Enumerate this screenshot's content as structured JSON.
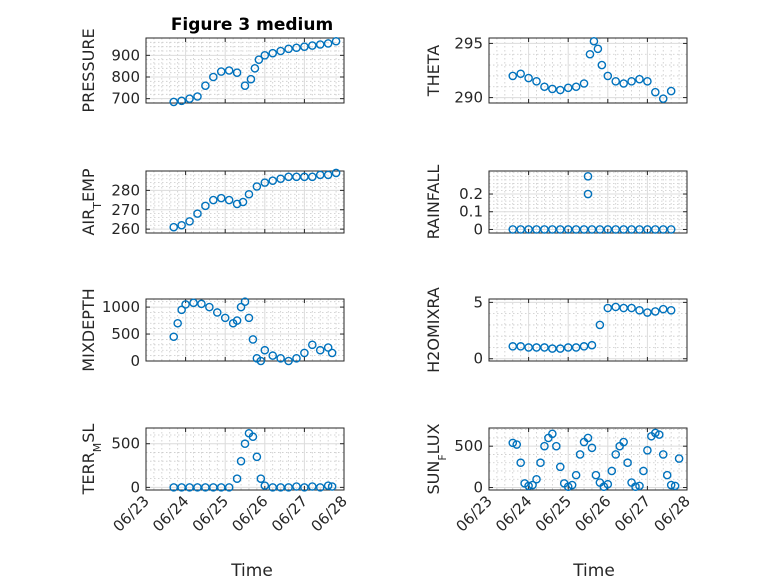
{
  "chart_data": [
    {
      "type": "scatter",
      "id": "pressure",
      "title": "Figure 3 medium",
      "ylabel": "PRESSURE",
      "ylim": [
        680,
        980
      ],
      "yticks": [
        700,
        800,
        900
      ],
      "ytick_labels": [
        "700",
        "800",
        "900"
      ],
      "series": [
        {
          "x": [
            0.7,
            0.9,
            1.1,
            1.3,
            1.5,
            1.7,
            1.9,
            2.1,
            2.3,
            2.5,
            2.65,
            2.75,
            2.85,
            3.0,
            3.2,
            3.4,
            3.6,
            3.8,
            4.0,
            4.2,
            4.4,
            4.6,
            4.8
          ],
          "y": [
            685,
            690,
            700,
            710,
            760,
            800,
            825,
            830,
            820,
            760,
            790,
            840,
            880,
            900,
            910,
            920,
            930,
            935,
            940,
            945,
            950,
            955,
            965
          ]
        }
      ]
    },
    {
      "type": "scatter",
      "id": "theta",
      "ylabel": "THETA",
      "ylim": [
        289.5,
        295.5
      ],
      "yticks": [
        290,
        295
      ],
      "ytick_labels": [
        "290",
        "295"
      ],
      "series": [
        {
          "x": [
            0.6,
            0.8,
            1.0,
            1.2,
            1.4,
            1.6,
            1.8,
            2.0,
            2.2,
            2.4,
            2.55,
            2.65,
            2.75,
            2.85,
            3.0,
            3.2,
            3.4,
            3.6,
            3.8,
            4.0,
            4.2,
            4.4,
            4.6
          ],
          "y": [
            292.0,
            292.2,
            291.8,
            291.5,
            291.0,
            290.8,
            290.7,
            290.9,
            291.0,
            291.3,
            294.0,
            295.2,
            294.5,
            293.0,
            292.0,
            291.5,
            291.3,
            291.5,
            291.7,
            291.5,
            290.5,
            289.9,
            290.6
          ]
        }
      ]
    },
    {
      "type": "scatter",
      "id": "air-temp",
      "ylabel": "AIR_TEMP",
      "ylim": [
        258,
        290
      ],
      "yticks": [
        260,
        270,
        280
      ],
      "ytick_labels": [
        "260",
        "270",
        "280"
      ],
      "series": [
        {
          "x": [
            0.7,
            0.9,
            1.1,
            1.3,
            1.5,
            1.7,
            1.9,
            2.1,
            2.3,
            2.45,
            2.6,
            2.8,
            3.0,
            3.2,
            3.4,
            3.6,
            3.8,
            4.0,
            4.2,
            4.4,
            4.6,
            4.8
          ],
          "y": [
            261,
            262,
            264,
            268,
            272,
            275,
            276,
            275,
            273,
            274,
            278,
            282,
            284,
            285,
            286,
            287,
            287,
            287,
            287,
            288,
            288,
            289
          ]
        }
      ]
    },
    {
      "type": "scatter",
      "id": "rainfall",
      "ylabel": "RAINFALL",
      "ylim": [
        -0.02,
        0.33
      ],
      "yticks": [
        0,
        0.1,
        0.2
      ],
      "ytick_labels": [
        "0",
        "0.1",
        "0.2"
      ],
      "series": [
        {
          "x": [
            0.6,
            0.8,
            1.0,
            1.2,
            1.4,
            1.6,
            1.8,
            2.0,
            2.2,
            2.4,
            2.5,
            2.5,
            2.6,
            2.8,
            3.0,
            3.2,
            3.4,
            3.6,
            3.8,
            4.0,
            4.2,
            4.4,
            4.6
          ],
          "y": [
            0,
            0,
            0,
            0,
            0,
            0,
            0,
            0,
            0,
            0,
            0.3,
            0.2,
            0,
            0,
            0,
            0,
            0,
            0,
            0,
            0,
            0,
            0,
            0
          ]
        }
      ]
    },
    {
      "type": "scatter",
      "id": "mixdepth",
      "ylabel": "MIXDEPTH",
      "ylim": [
        0,
        1150
      ],
      "yticks": [
        0,
        500,
        1000
      ],
      "ytick_labels": [
        "0",
        "500",
        "1000"
      ],
      "series": [
        {
          "x": [
            0.7,
            0.8,
            0.9,
            1.0,
            1.2,
            1.4,
            1.6,
            1.8,
            2.0,
            2.2,
            2.3,
            2.4,
            2.5,
            2.6,
            2.7,
            2.8,
            2.9,
            3.0,
            3.2,
            3.4,
            3.6,
            3.8,
            4.0,
            4.2,
            4.4,
            4.6,
            4.7
          ],
          "y": [
            450,
            700,
            950,
            1050,
            1080,
            1060,
            1000,
            900,
            800,
            700,
            750,
            1000,
            1100,
            800,
            400,
            50,
            0,
            200,
            100,
            50,
            0,
            50,
            150,
            300,
            200,
            250,
            150
          ]
        }
      ]
    },
    {
      "type": "scatter",
      "id": "h2omixra",
      "ylabel": "H2OMIXRA",
      "ylim": [
        -0.2,
        5.3
      ],
      "yticks": [
        0,
        5
      ],
      "ytick_labels": [
        "0",
        "5"
      ],
      "series": [
        {
          "x": [
            0.6,
            0.8,
            1.0,
            1.2,
            1.4,
            1.6,
            1.8,
            2.0,
            2.2,
            2.4,
            2.6,
            2.8,
            3.0,
            3.2,
            3.4,
            3.6,
            3.8,
            4.0,
            4.2,
            4.4,
            4.6
          ],
          "y": [
            1.1,
            1.1,
            1.0,
            1.0,
            1.0,
            0.9,
            0.9,
            1.0,
            1.0,
            1.1,
            1.2,
            3.0,
            4.5,
            4.6,
            4.5,
            4.5,
            4.3,
            4.1,
            4.2,
            4.4,
            4.3
          ]
        }
      ]
    },
    {
      "type": "scatter",
      "id": "terr-msl",
      "ylabel": "TERR_MSL",
      "ylim": [
        -30,
        680
      ],
      "yticks": [
        0,
        500
      ],
      "ytick_labels": [
        "0",
        "500"
      ],
      "series": [
        {
          "x": [
            0.7,
            0.9,
            1.1,
            1.3,
            1.5,
            1.7,
            1.9,
            2.1,
            2.3,
            2.4,
            2.5,
            2.6,
            2.7,
            2.8,
            2.9,
            3.0,
            3.2,
            3.4,
            3.6,
            3.8,
            4.0,
            4.2,
            4.4,
            4.6,
            4.7
          ],
          "y": [
            0,
            0,
            0,
            0,
            0,
            0,
            0,
            0,
            100,
            300,
            500,
            620,
            580,
            350,
            100,
            20,
            0,
            0,
            0,
            10,
            0,
            10,
            0,
            20,
            10
          ]
        }
      ]
    },
    {
      "type": "scatter",
      "id": "sun-flux",
      "ylabel": "SUN_FLUX",
      "ylim": [
        -30,
        720
      ],
      "yticks": [
        0,
        500
      ],
      "ytick_labels": [
        "0",
        "500"
      ],
      "series": [
        {
          "x": [
            0.6,
            0.7,
            0.8,
            0.9,
            1.0,
            1.1,
            1.2,
            1.3,
            1.4,
            1.5,
            1.6,
            1.7,
            1.8,
            1.9,
            2.0,
            2.1,
            2.2,
            2.3,
            2.4,
            2.5,
            2.6,
            2.7,
            2.8,
            2.9,
            3.0,
            3.1,
            3.2,
            3.3,
            3.4,
            3.5,
            3.6,
            3.7,
            3.8,
            3.9,
            4.0,
            4.1,
            4.2,
            4.3,
            4.4,
            4.5,
            4.6,
            4.7,
            4.8
          ],
          "y": [
            540,
            520,
            300,
            50,
            20,
            30,
            100,
            300,
            500,
            600,
            650,
            500,
            250,
            50,
            10,
            30,
            150,
            400,
            550,
            600,
            480,
            150,
            60,
            10,
            40,
            200,
            400,
            500,
            550,
            300,
            60,
            10,
            20,
            200,
            450,
            620,
            660,
            640,
            400,
            150,
            30,
            20,
            350
          ]
        }
      ]
    }
  ],
  "x_axis": {
    "label": "Time",
    "xlim": [
      0,
      5
    ],
    "ticks": [
      0,
      1,
      2,
      3,
      4,
      5
    ],
    "tick_labels": [
      "06/23",
      "06/24",
      "06/25",
      "06/26",
      "06/27",
      "06/28"
    ]
  }
}
